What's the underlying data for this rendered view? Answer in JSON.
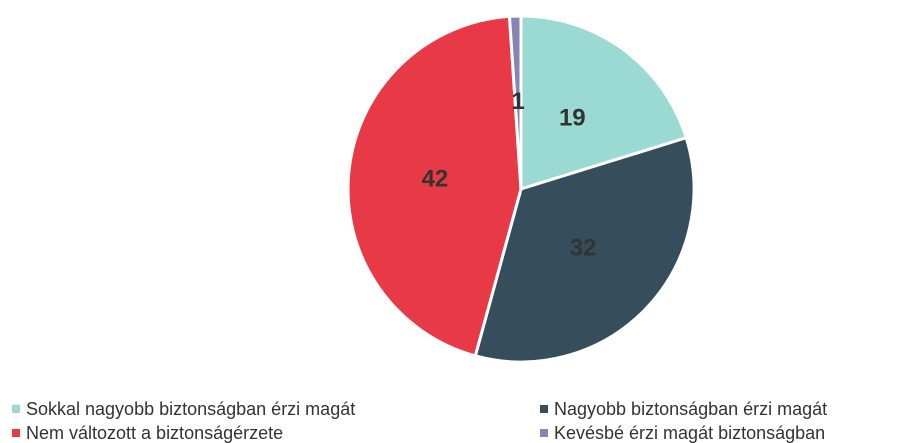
{
  "chart_data": {
    "type": "pie",
    "categories": [
      "Sokkal nagyobb biztonságban érzi magát",
      "Nagyobb biztonságban érzi magát",
      "Nem változott a biztonságérzete",
      "Kevésbé érzi magát biztonságban"
    ],
    "values": [
      19,
      32,
      42,
      1
    ],
    "colors": [
      "#9bd9d3",
      "#364e5b",
      "#e83a46",
      "#8884b6"
    ]
  }
}
